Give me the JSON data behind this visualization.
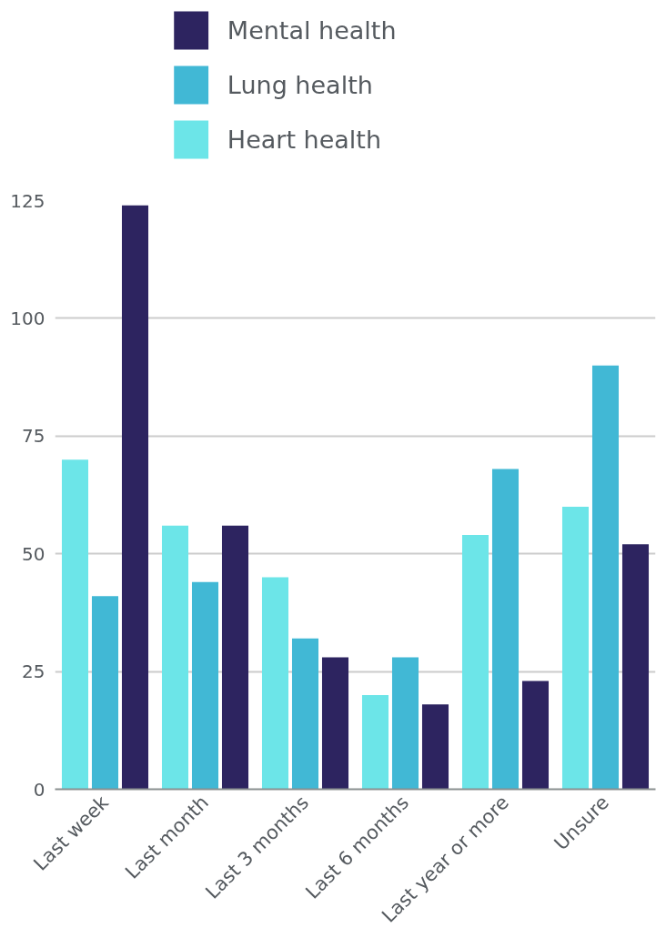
{
  "chart_data": {
    "type": "bar",
    "categories": [
      "Last week",
      "Last month",
      "Last 3 months",
      "Last 6 months",
      "Last year or more",
      "Unsure"
    ],
    "series": [
      {
        "name": "Heart health",
        "color": "#6ce5e8",
        "values": [
          70,
          56,
          45,
          20,
          54,
          60
        ]
      },
      {
        "name": "Lung health",
        "color": "#41b8d5",
        "values": [
          41,
          44,
          32,
          28,
          68,
          90
        ]
      },
      {
        "name": "Mental health",
        "color": "#2d2460",
        "values": [
          124,
          56,
          28,
          18,
          23,
          52
        ]
      }
    ],
    "ylim": [
      0,
      125
    ],
    "yticks": [
      0,
      25,
      50,
      75,
      100,
      125
    ],
    "grid": "y",
    "legend": "top left"
  }
}
